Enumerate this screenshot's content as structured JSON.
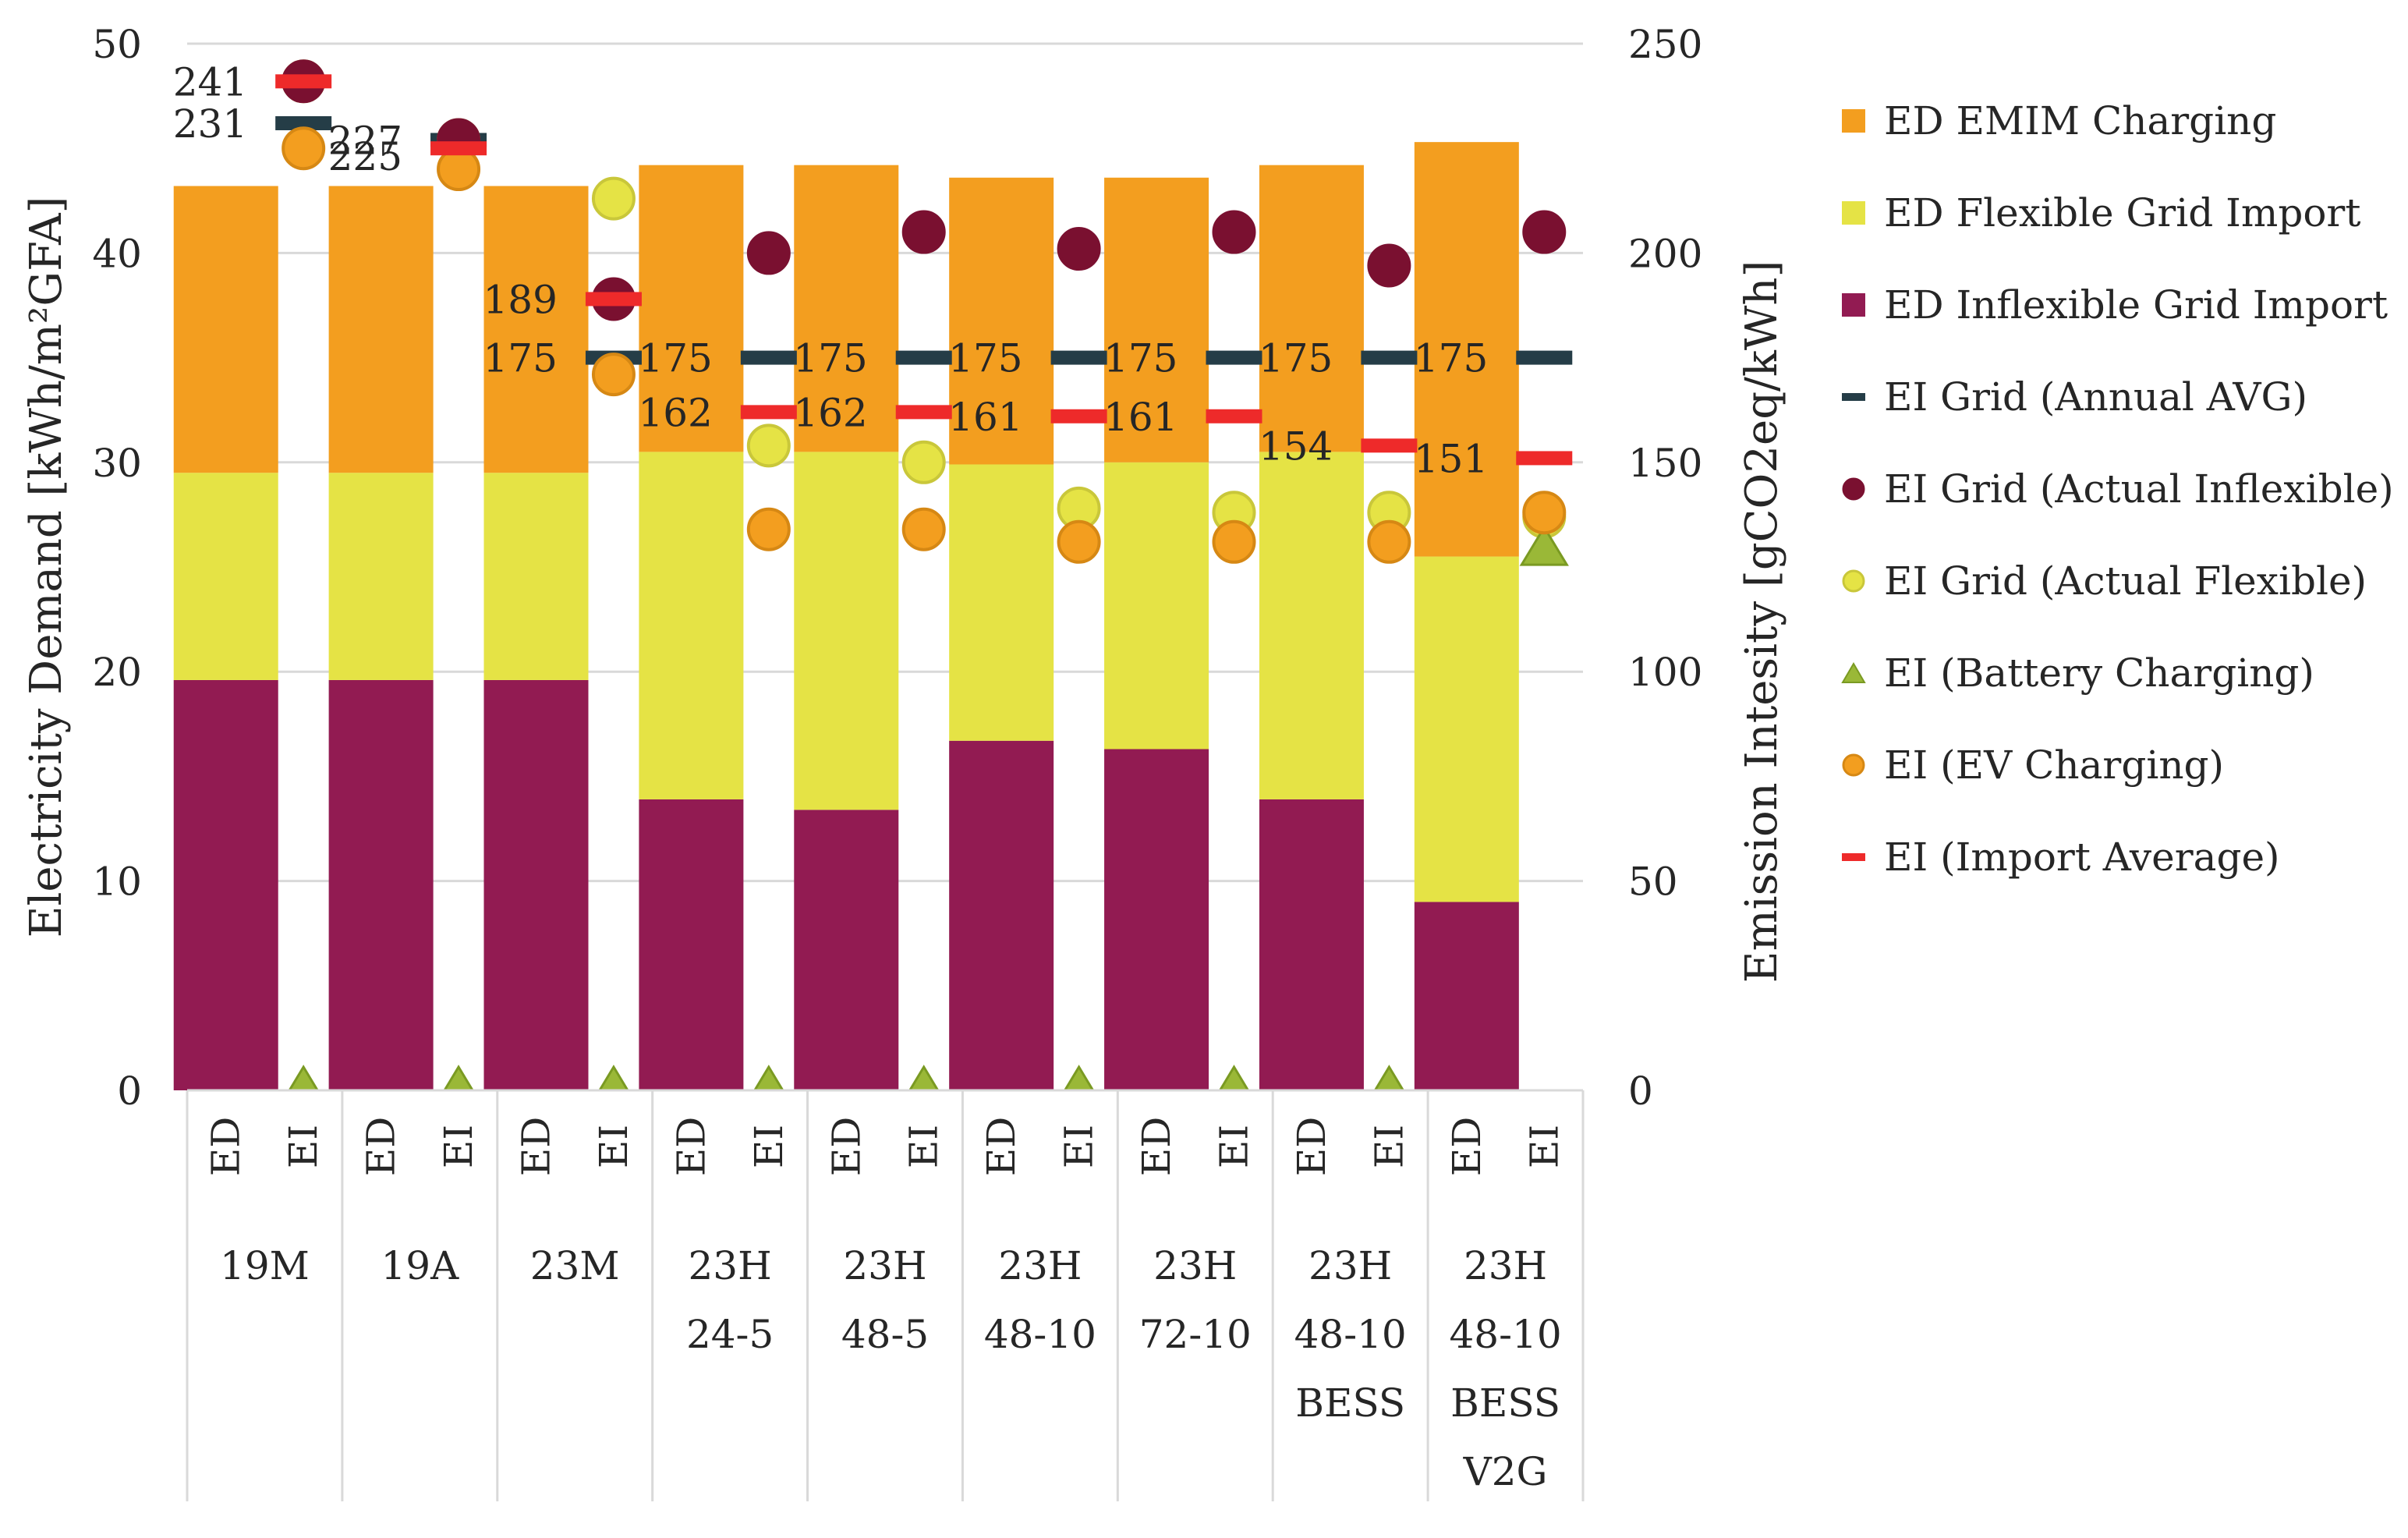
{
  "chart_data": {
    "type": "bar",
    "title": "",
    "ylabel": "Electricity Demand [kWh/m²GFA]",
    "y2label": "Emission Intesity [gCO2eq/kWh]",
    "ylim": [
      0,
      50
    ],
    "y2lim": [
      0,
      250
    ],
    "yticks": [
      0,
      10,
      20,
      30,
      40,
      50
    ],
    "y2ticks": [
      0,
      50,
      100,
      150,
      200,
      250
    ],
    "groups": [
      {
        "lines": [
          "19M"
        ]
      },
      {
        "lines": [
          "19A"
        ]
      },
      {
        "lines": [
          "23M"
        ]
      },
      {
        "lines": [
          "23H",
          "24-5"
        ]
      },
      {
        "lines": [
          "23H",
          "48-5"
        ]
      },
      {
        "lines": [
          "23H",
          "48-10"
        ]
      },
      {
        "lines": [
          "23H",
          "72-10"
        ]
      },
      {
        "lines": [
          "23H",
          "48-10",
          "BESS"
        ]
      },
      {
        "lines": [
          "23H",
          "48-10",
          "BESS",
          "V2G"
        ]
      }
    ],
    "subcategories": [
      "ED",
      "EI"
    ],
    "bar_series": [
      {
        "name": "ED Inflexible Grid Import",
        "color": "#921B52",
        "values": [
          19.6,
          19.6,
          19.6,
          13.9,
          13.4,
          16.7,
          16.3,
          13.9,
          9.0
        ]
      },
      {
        "name": "ED Flexible Grid Import",
        "color": "#E5E345",
        "values": [
          9.9,
          9.9,
          9.9,
          16.6,
          17.1,
          13.2,
          13.7,
          16.6,
          16.5
        ]
      },
      {
        "name": "ED EMIM Charging",
        "color": "#F39E1F",
        "values": [
          13.7,
          13.7,
          13.7,
          13.7,
          13.7,
          13.7,
          13.6,
          13.7,
          19.8
        ]
      }
    ],
    "marker_series": [
      {
        "name": "EI Grid (Annual AVG)",
        "marker": "dash",
        "color": "#253D47",
        "values": [
          231,
          227,
          175,
          175,
          175,
          175,
          175,
          175,
          175
        ]
      },
      {
        "name": "EI Grid (Actual Inflexible)",
        "marker": "circle",
        "color": "#7A1030",
        "values": [
          241,
          227,
          189,
          200,
          205,
          201,
          205,
          197,
          205
        ]
      },
      {
        "name": "EI Grid (Actual Flexible)",
        "marker": "circle",
        "color": "#E5E345",
        "values": [
          241,
          227,
          213,
          154,
          150,
          139,
          138,
          138,
          137
        ]
      },
      {
        "name": "EI (Battery Charging)",
        "marker": "triangle",
        "color": "#9AB837",
        "values": [
          0,
          0,
          0,
          0,
          0,
          0,
          0,
          0,
          130
        ]
      },
      {
        "name": "EI (EV Charging)",
        "marker": "circle",
        "color": "#F39E1F",
        "values": [
          225,
          220,
          171,
          134,
          134,
          131,
          131,
          131,
          138
        ]
      },
      {
        "name": "EI (Import Average)",
        "marker": "dash",
        "color": "#EE2A2A",
        "values": [
          241,
          225,
          189,
          162,
          162,
          161,
          161,
          154,
          151
        ]
      }
    ],
    "annual_avg_labels": [
      "231",
      "227",
      "175",
      "175",
      "175",
      "175",
      "175",
      "175",
      "175"
    ],
    "import_avg_labels": [
      "241",
      "225",
      "189",
      "162",
      "162",
      "161",
      "161",
      "154",
      "151"
    ],
    "legend_position": "right",
    "gridlines": true
  },
  "legend": {
    "items": [
      {
        "label": "ED EMIM Charging",
        "color": "#F39E1F",
        "shape": "square"
      },
      {
        "label": "ED Flexible Grid Import",
        "color": "#E5E345",
        "shape": "square"
      },
      {
        "label": "ED Inflexible Grid Import",
        "color": "#921B52",
        "shape": "square"
      },
      {
        "label": "EI Grid (Annual AVG)",
        "color": "#253D47",
        "shape": "dash"
      },
      {
        "label": "EI Grid (Actual Inflexible)",
        "color": "#7A1030",
        "shape": "circle"
      },
      {
        "label": "EI Grid (Actual Flexible)",
        "color": "#E5E345",
        "shape": "circle"
      },
      {
        "label": "EI (Battery Charging)",
        "color": "#9AB837",
        "shape": "triangle"
      },
      {
        "label": "EI (EV Charging)",
        "color": "#F39E1F",
        "shape": "circle"
      },
      {
        "label": "EI (Import Average)",
        "color": "#EE2A2A",
        "shape": "dash"
      }
    ]
  }
}
